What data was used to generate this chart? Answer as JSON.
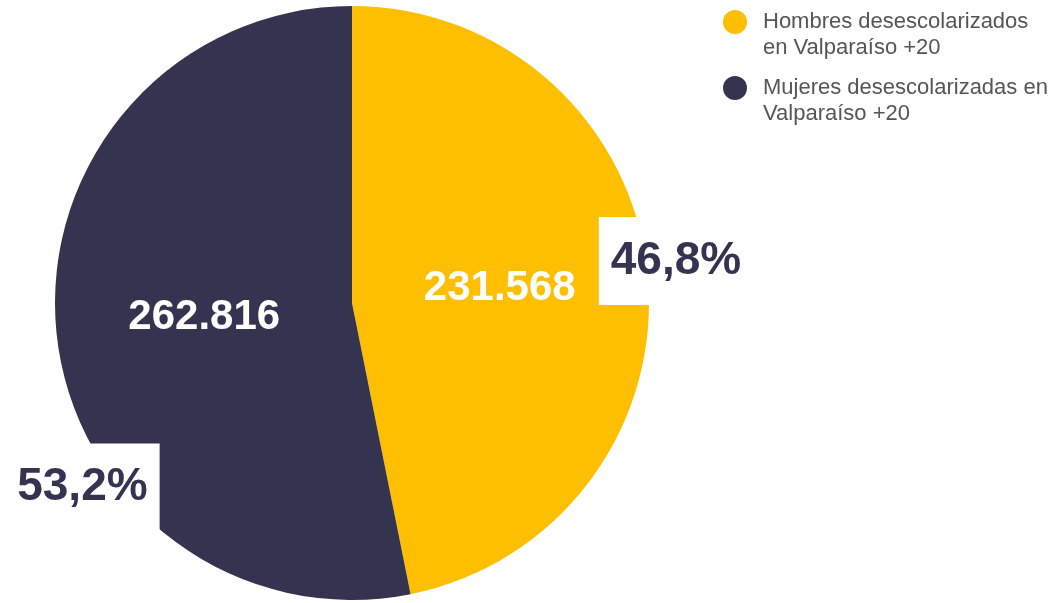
{
  "chart_data": {
    "type": "pie",
    "categories": [
      "Hombres desescolarizados en Valparaíso +20",
      "Mujeres desescolarizadas en Valparaíso +20"
    ],
    "values": [
      231568,
      262816
    ],
    "colors": [
      "#fdbf00",
      "#343450"
    ],
    "value_labels": [
      "231.568",
      "262.816"
    ],
    "annotations": [
      "46,8%",
      "53,2%"
    ],
    "legend": "top right"
  }
}
